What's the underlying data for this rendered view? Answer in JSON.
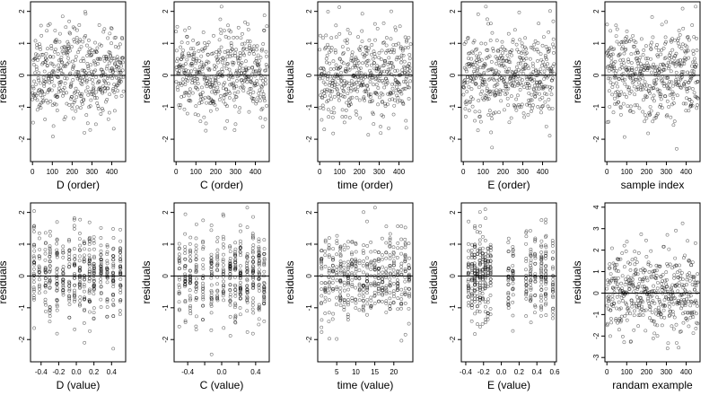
{
  "chart_data": [
    {
      "type": "scatter",
      "xlabel": "D (order)",
      "ylabel": "residuals",
      "xlim": [
        -10,
        470
      ],
      "ylim": [
        -2.7,
        2.3
      ],
      "xticks": [
        0,
        100,
        200,
        300,
        400
      ],
      "xtick_labels": [
        "0",
        "100",
        "200",
        "300",
        "400"
      ],
      "yticks": [
        -2,
        -1,
        0,
        1,
        2
      ],
      "ytick_labels": [
        "-2",
        "-1",
        "0",
        "1",
        "2"
      ],
      "hline": 0,
      "n_points": 460,
      "pattern": "index",
      "seed": 11
    },
    {
      "type": "scatter",
      "xlabel": "C (order)",
      "ylabel": "residuals",
      "xlim": [
        -10,
        470
      ],
      "ylim": [
        -2.7,
        2.3
      ],
      "xticks": [
        0,
        100,
        200,
        300,
        400
      ],
      "xtick_labels": [
        "0",
        "100",
        "200",
        "300",
        "400"
      ],
      "yticks": [
        -2,
        -1,
        0,
        1,
        2
      ],
      "ytick_labels": [
        "-2",
        "-1",
        "0",
        "1",
        "2"
      ],
      "hline": 0,
      "n_points": 460,
      "pattern": "index",
      "seed": 23
    },
    {
      "type": "scatter",
      "xlabel": "time (order)",
      "ylabel": "residuals",
      "xlim": [
        -10,
        470
      ],
      "ylim": [
        -2.7,
        2.3
      ],
      "xticks": [
        0,
        100,
        200,
        300,
        400
      ],
      "xtick_labels": [
        "0",
        "100",
        "200",
        "300",
        "400"
      ],
      "yticks": [
        -2,
        -1,
        0,
        1,
        2
      ],
      "ytick_labels": [
        "-2",
        "-1",
        "0",
        "1",
        "2"
      ],
      "hline": 0,
      "n_points": 460,
      "pattern": "index",
      "seed": 37
    },
    {
      "type": "scatter",
      "xlabel": "E (order)",
      "ylabel": "residuals",
      "xlim": [
        -10,
        470
      ],
      "ylim": [
        -2.7,
        2.3
      ],
      "xticks": [
        0,
        100,
        200,
        300,
        400
      ],
      "xtick_labels": [
        "0",
        "100",
        "200",
        "300",
        "400"
      ],
      "yticks": [
        -2,
        -1,
        0,
        1,
        2
      ],
      "ytick_labels": [
        "-2",
        "-1",
        "0",
        "1",
        "2"
      ],
      "hline": 0,
      "n_points": 460,
      "pattern": "index",
      "seed": 41
    },
    {
      "type": "scatter",
      "xlabel": "sample index",
      "ylabel": "residuals",
      "xlim": [
        -10,
        470
      ],
      "ylim": [
        -2.7,
        2.3
      ],
      "xticks": [
        0,
        100,
        200,
        300,
        400
      ],
      "xtick_labels": [
        "0",
        "100",
        "200",
        "300",
        "400"
      ],
      "yticks": [
        -2,
        -1,
        0,
        1,
        2
      ],
      "ytick_labels": [
        "-2",
        "-1",
        "0",
        "1",
        "2"
      ],
      "hline": 0,
      "n_points": 460,
      "pattern": "index",
      "seed": 53
    },
    {
      "type": "scatter",
      "xlabel": "D (value)",
      "ylabel": "residuals",
      "xlim": [
        -0.52,
        0.56
      ],
      "ylim": [
        -2.7,
        2.3
      ],
      "xticks": [
        -0.4,
        -0.2,
        0.0,
        0.2,
        0.4
      ],
      "xtick_labels": [
        "-0.4",
        "-0.2",
        "0.0",
        "0.2",
        "0.4"
      ],
      "yticks": [
        -2,
        -1,
        0,
        1,
        2
      ],
      "ytick_labels": [
        "-2",
        "-1",
        "0",
        "1",
        "2"
      ],
      "hline": 0,
      "n_points": 460,
      "pattern": "levels",
      "levels": [
        -0.48,
        -0.42,
        -0.35,
        -0.3,
        -0.22,
        -0.15,
        -0.08,
        -0.02,
        0.04,
        0.09,
        0.15,
        0.2,
        0.28,
        0.35,
        0.42,
        0.5
      ],
      "seed": 61
    },
    {
      "type": "scatter",
      "xlabel": "C (value)",
      "ylabel": "residuals",
      "xlim": [
        -0.56,
        0.56
      ],
      "ylim": [
        -2.7,
        2.3
      ],
      "xticks": [
        -0.4,
        -0.2,
        0.0,
        0.2,
        0.4
      ],
      "xtick_labels": [
        "-0.4",
        "",
        "0.0",
        "",
        "0.4"
      ],
      "yticks": [
        -2,
        -1,
        0,
        1,
        2
      ],
      "ytick_labels": [
        "-2",
        "-1",
        "0",
        "1",
        "2"
      ],
      "hline": 0,
      "n_points": 460,
      "pattern": "levels",
      "levels": [
        -0.5,
        -0.43,
        -0.37,
        -0.3,
        -0.22,
        -0.12,
        -0.05,
        0.02,
        0.1,
        0.16,
        0.22,
        0.3,
        0.37,
        0.44,
        0.5
      ],
      "seed": 67
    },
    {
      "type": "scatter",
      "xlabel": "time (value)",
      "ylabel": "residuals",
      "xlim": [
        0,
        25
      ],
      "ylim": [
        -2.7,
        2.3
      ],
      "xticks": [
        5,
        10,
        15,
        20
      ],
      "xtick_labels": [
        "5",
        "10",
        "15",
        "20"
      ],
      "yticks": [
        -2,
        -1,
        0,
        1,
        2
      ],
      "ytick_labels": [
        "-2",
        "-1",
        "0",
        "1",
        "2"
      ],
      "hline": 0,
      "n_points": 460,
      "pattern": "levels",
      "levels": [
        1,
        2,
        3,
        4,
        5,
        6,
        7,
        8,
        9,
        10,
        11,
        12,
        13,
        14,
        15,
        16,
        17,
        18,
        19,
        20,
        21,
        22,
        23,
        24
      ],
      "seed": 71
    },
    {
      "type": "scatter",
      "xlabel": "E (value)",
      "ylabel": "residuals",
      "xlim": [
        -0.45,
        0.62
      ],
      "ylim": [
        -2.7,
        2.3
      ],
      "xticks": [
        -0.4,
        -0.2,
        0.0,
        0.2,
        0.4,
        0.6
      ],
      "xtick_labels": [
        "-0.4",
        "-0.2",
        "0.0",
        "0.2",
        "0.4",
        "0.6"
      ],
      "yticks": [
        -2,
        -1,
        0,
        1,
        2
      ],
      "ytick_labels": [
        "-2",
        "-1",
        "0",
        "1",
        "2"
      ],
      "hline": 0,
      "n_points": 460,
      "pattern": "levels",
      "levels": [
        -0.37,
        -0.33,
        -0.3,
        -0.27,
        -0.24,
        -0.21,
        -0.18,
        -0.15,
        -0.12,
        0.08,
        0.13,
        0.28,
        0.33,
        0.38,
        0.45,
        0.5,
        0.58
      ],
      "seed": 79
    },
    {
      "type": "scatter",
      "xlabel": "randam example",
      "ylabel": "residuals",
      "xlim": [
        -10,
        470
      ],
      "ylim": [
        -3.2,
        4.2
      ],
      "xticks": [
        0,
        100,
        200,
        300,
        400
      ],
      "xtick_labels": [
        "0",
        "100",
        "200",
        "300",
        "400"
      ],
      "yticks": [
        -3,
        -2,
        -1,
        0,
        1,
        2,
        3,
        4
      ],
      "ytick_labels": [
        "-3",
        "-2",
        "-1",
        "0",
        "1",
        "2",
        "3",
        "4"
      ],
      "hline": 0,
      "n_points": 460,
      "pattern": "index_wide",
      "seed": 97
    }
  ]
}
